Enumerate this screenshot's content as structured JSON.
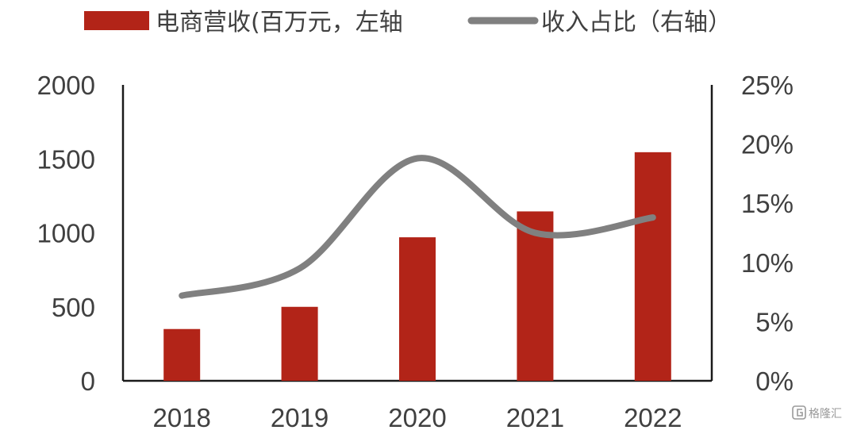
{
  "chart_data": {
    "type": "bar",
    "categories": [
      "2018",
      "2019",
      "2020",
      "2021",
      "2022"
    ],
    "series": [
      {
        "name": "电商营收(百万元，左轴",
        "type": "bar",
        "axis": "left",
        "values": [
          350,
          500,
          970,
          1145,
          1545
        ],
        "color": "#b22418"
      },
      {
        "name": "收入占比（右轴）",
        "type": "line",
        "axis": "right",
        "values": [
          7.2,
          9.5,
          18.8,
          12.5,
          13.8
        ],
        "color": "#808080"
      }
    ],
    "y_left": {
      "ylim": [
        0,
        2000
      ],
      "ticks": [
        0,
        500,
        1000,
        1500,
        2000
      ],
      "tick_labels": [
        "0",
        "500",
        "1000",
        "1500",
        "2000"
      ]
    },
    "y_right": {
      "ylim": [
        0,
        25
      ],
      "ticks": [
        0,
        5,
        10,
        15,
        20,
        25
      ],
      "tick_labels": [
        "0%",
        "5%",
        "10%",
        "15%",
        "20%",
        "25%"
      ]
    },
    "legend": {
      "placement": "top",
      "bar_label": "电商营收(百万元，左轴",
      "line_label": "收入占比（右轴）"
    },
    "grid": false
  },
  "watermark": {
    "text": "格隆汇"
  }
}
